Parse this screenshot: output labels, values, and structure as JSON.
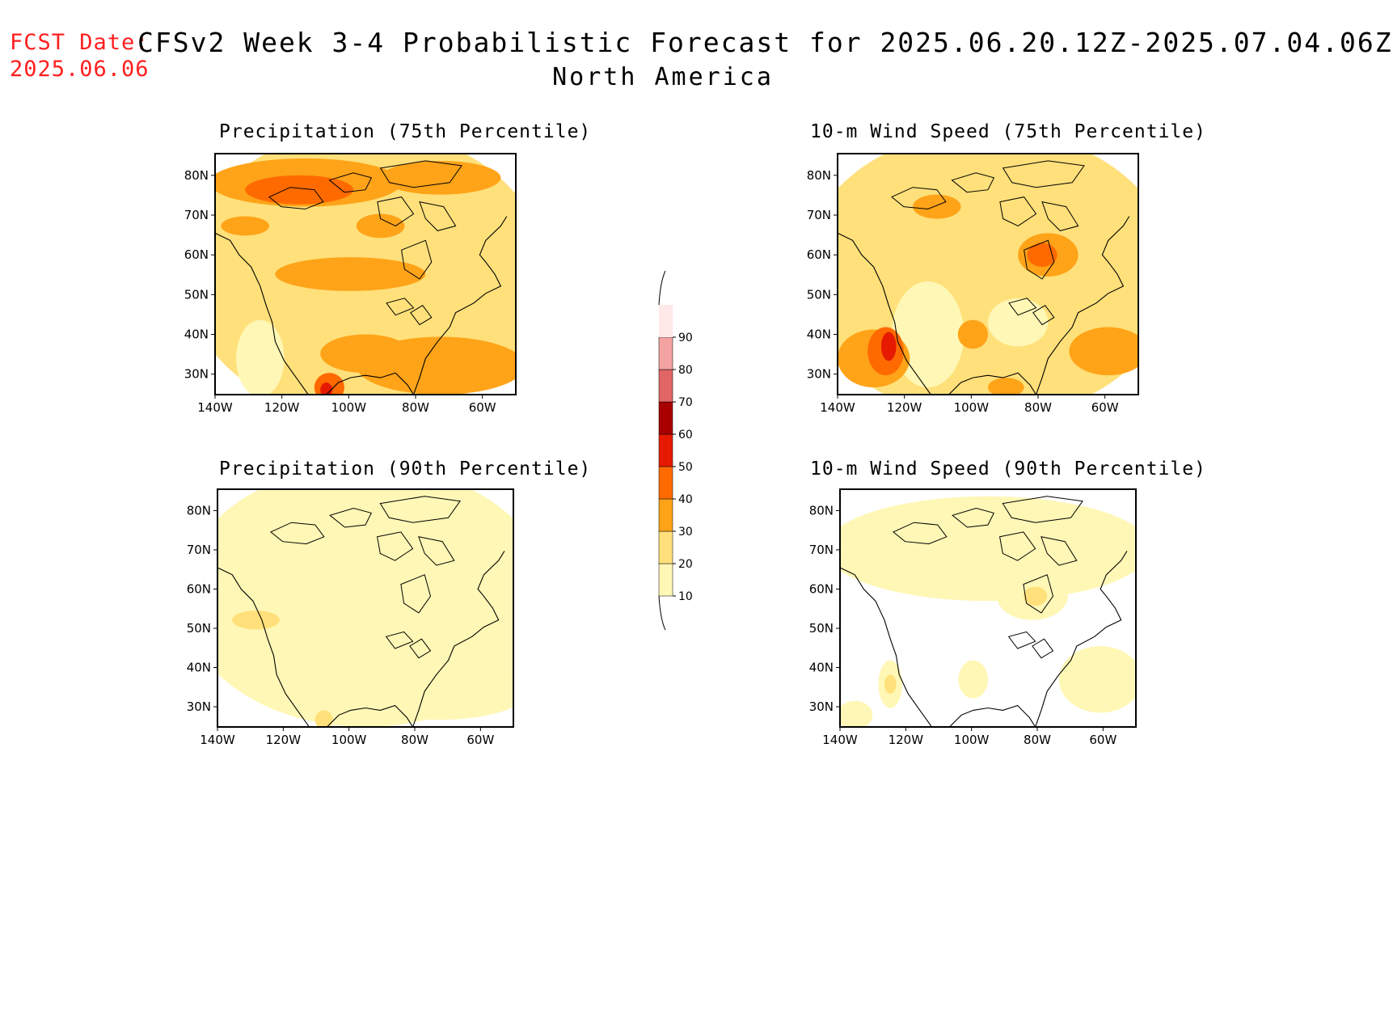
{
  "header": {
    "fcst_label": "FCST Date:",
    "fcst_date": "2025.06.06",
    "title": "CFSv2 Week 3-4 Probabilistic Forecast for 2025.06.20.12Z-2025.07.04.06Z",
    "subtitle": "North America"
  },
  "axes": {
    "lon_ticks": [
      "140W",
      "120W",
      "100W",
      "80W",
      "60W"
    ],
    "lat_ticks": [
      "80N",
      "70N",
      "60N",
      "50N",
      "40N",
      "30N"
    ]
  },
  "panels": [
    {
      "id": "precip-75",
      "title": "Precipitation (75th Percentile)"
    },
    {
      "id": "wind-75",
      "title": "10-m Wind Speed (75th Percentile)"
    },
    {
      "id": "precip-90",
      "title": "Precipitation (90th Percentile)"
    },
    {
      "id": "wind-90",
      "title": "10-m Wind Speed (90th Percentile)"
    }
  ],
  "colorbar": {
    "levels": [
      "10",
      "20",
      "30",
      "40",
      "50",
      "60",
      "70",
      "80",
      "90"
    ],
    "colors": [
      "#fff7b5",
      "#ffe07a",
      "#ffa318",
      "#ff6a00",
      "#e51a00",
      "#a80000",
      "#e06666",
      "#f4a3a3",
      "#ffe8e8"
    ]
  },
  "fill_colors": {
    "c10": "#fff7b5",
    "c20": "#ffe07a",
    "c30": "#ffa318",
    "c40": "#ff6a00",
    "c50": "#e51a00",
    "c60": "#a80000"
  }
}
